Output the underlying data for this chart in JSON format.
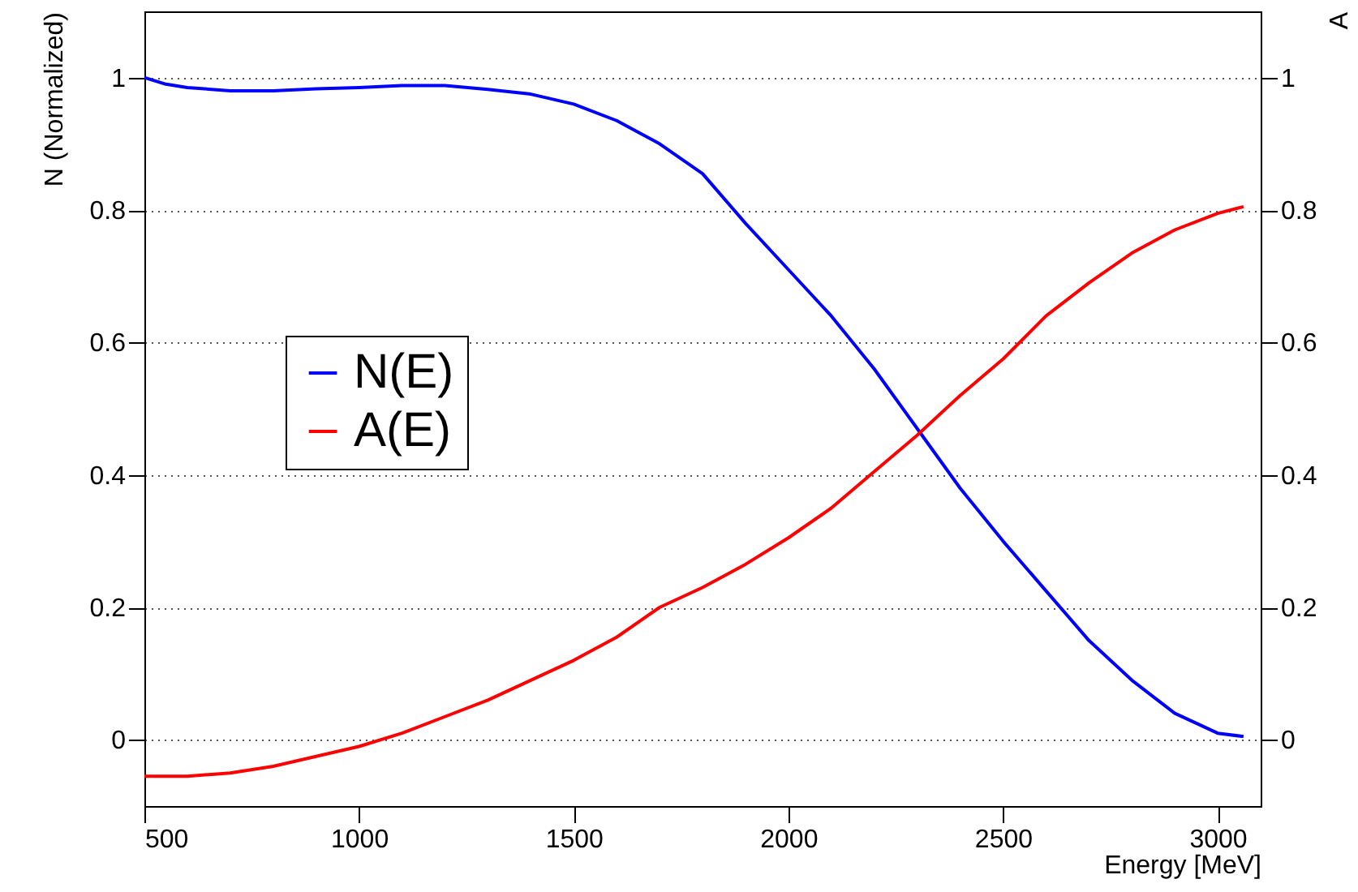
{
  "chart_data": {
    "type": "line",
    "xlabel": "Energy [MeV]",
    "ylabel": "N (Normalized)",
    "y2label": "A",
    "xlim": [
      500,
      3100
    ],
    "xticks": [
      500,
      1000,
      1500,
      2000,
      2500,
      3000
    ],
    "ylim": [
      -0.1,
      1.1
    ],
    "yticks": [
      0,
      0.2,
      0.4,
      0.6,
      0.8,
      1
    ],
    "y2lim": [
      -0.1,
      1.1
    ],
    "y2ticks": [
      0,
      0.2,
      0.4,
      0.6,
      0.8,
      1
    ],
    "grid": "y",
    "legend": "left",
    "marker": "none",
    "line_style": "solid",
    "x": [
      500,
      550,
      600,
      700,
      800,
      900,
      1000,
      1100,
      1200,
      1300,
      1400,
      1500,
      1600,
      1700,
      1800,
      1900,
      2000,
      2100,
      2200,
      2300,
      2400,
      2500,
      2600,
      2700,
      2800,
      2900,
      3000,
      3060
    ],
    "series": [
      {
        "name": "N(E)",
        "color": "#0000ff",
        "values": [
          1.0,
          0.99,
          0.985,
          0.98,
          0.98,
          0.983,
          0.985,
          0.988,
          0.988,
          0.982,
          0.975,
          0.96,
          0.935,
          0.9,
          0.855,
          0.78,
          0.71,
          0.64,
          0.56,
          0.47,
          0.38,
          0.3,
          0.225,
          0.15,
          0.09,
          0.04,
          0.01,
          0.005
        ]
      },
      {
        "name": "A(E)",
        "color": "#ff0000",
        "axis": "y2",
        "values": [
          -0.055,
          -0.055,
          -0.055,
          -0.05,
          -0.04,
          -0.025,
          -0.01,
          0.01,
          0.035,
          0.06,
          0.09,
          0.12,
          0.155,
          0.2,
          0.23,
          0.265,
          0.305,
          0.35,
          0.405,
          0.46,
          0.52,
          0.575,
          0.64,
          0.69,
          0.735,
          0.77,
          0.795,
          0.805
        ]
      }
    ]
  }
}
